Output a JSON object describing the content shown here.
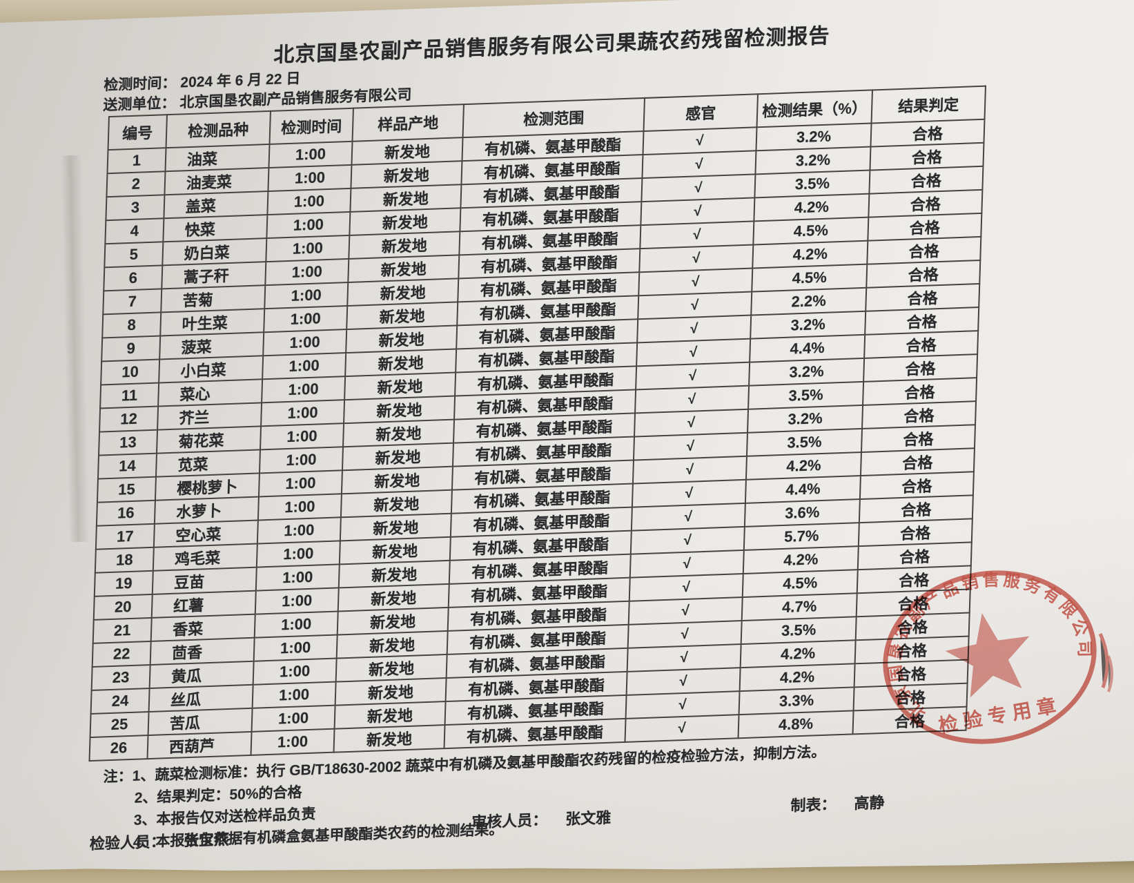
{
  "report": {
    "title": "北京国垦农副产品销售服务有限公司果蔬农药残留检测报告",
    "test_time_label": "检测时间：",
    "test_time_value": "2024 年 6 月 22 日",
    "submitter_label": "送测单位：",
    "submitter_value": "北京国垦农副产品销售服务有限公司",
    "table": {
      "headers": [
        "编号",
        "检测品种",
        "检测时间",
        "样品产地",
        "检测范围",
        "感官",
        "检测结果（%）",
        "结果判定"
      ],
      "rows": [
        [
          "1",
          "油菜",
          "1:00",
          "新发地",
          "有机磷、氨基甲酸酯",
          "√",
          "3.2%",
          "合格"
        ],
        [
          "2",
          "油麦菜",
          "1:00",
          "新发地",
          "有机磷、氨基甲酸酯",
          "√",
          "3.2%",
          "合格"
        ],
        [
          "3",
          "盖菜",
          "1:00",
          "新发地",
          "有机磷、氨基甲酸酯",
          "√",
          "3.5%",
          "合格"
        ],
        [
          "4",
          "快菜",
          "1:00",
          "新发地",
          "有机磷、氨基甲酸酯",
          "√",
          "4.2%",
          "合格"
        ],
        [
          "5",
          "奶白菜",
          "1:00",
          "新发地",
          "有机磷、氨基甲酸酯",
          "√",
          "4.5%",
          "合格"
        ],
        [
          "6",
          "蒿子秆",
          "1:00",
          "新发地",
          "有机磷、氨基甲酸酯",
          "√",
          "4.2%",
          "合格"
        ],
        [
          "7",
          "苦菊",
          "1:00",
          "新发地",
          "有机磷、氨基甲酸酯",
          "√",
          "4.5%",
          "合格"
        ],
        [
          "8",
          "叶生菜",
          "1:00",
          "新发地",
          "有机磷、氨基甲酸酯",
          "√",
          "2.2%",
          "合格"
        ],
        [
          "9",
          "菠菜",
          "1:00",
          "新发地",
          "有机磷、氨基甲酸酯",
          "√",
          "3.2%",
          "合格"
        ],
        [
          "10",
          "小白菜",
          "1:00",
          "新发地",
          "有机磷、氨基甲酸酯",
          "√",
          "4.4%",
          "合格"
        ],
        [
          "11",
          "菜心",
          "1:00",
          "新发地",
          "有机磷、氨基甲酸酯",
          "√",
          "3.2%",
          "合格"
        ],
        [
          "12",
          "芥兰",
          "1:00",
          "新发地",
          "有机磷、氨基甲酸酯",
          "√",
          "3.5%",
          "合格"
        ],
        [
          "13",
          "菊花菜",
          "1:00",
          "新发地",
          "有机磷、氨基甲酸酯",
          "√",
          "3.2%",
          "合格"
        ],
        [
          "14",
          "苋菜",
          "1:00",
          "新发地",
          "有机磷、氨基甲酸酯",
          "√",
          "3.5%",
          "合格"
        ],
        [
          "15",
          "樱桃萝卜",
          "1:00",
          "新发地",
          "有机磷、氨基甲酸酯",
          "√",
          "4.2%",
          "合格"
        ],
        [
          "16",
          "水萝卜",
          "1:00",
          "新发地",
          "有机磷、氨基甲酸酯",
          "√",
          "4.4%",
          "合格"
        ],
        [
          "17",
          "空心菜",
          "1:00",
          "新发地",
          "有机磷、氨基甲酸酯",
          "√",
          "3.6%",
          "合格"
        ],
        [
          "18",
          "鸡毛菜",
          "1:00",
          "新发地",
          "有机磷、氨基甲酸酯",
          "√",
          "5.7%",
          "合格"
        ],
        [
          "19",
          "豆苗",
          "1:00",
          "新发地",
          "有机磷、氨基甲酸酯",
          "√",
          "4.2%",
          "合格"
        ],
        [
          "20",
          "红薯",
          "1:00",
          "新发地",
          "有机磷、氨基甲酸酯",
          "√",
          "4.5%",
          "合格"
        ],
        [
          "21",
          "香菜",
          "1:00",
          "新发地",
          "有机磷、氨基甲酸酯",
          "√",
          "4.7%",
          "合格"
        ],
        [
          "22",
          "茴香",
          "1:00",
          "新发地",
          "有机磷、氨基甲酸酯",
          "√",
          "3.5%",
          "合格"
        ],
        [
          "23",
          "黄瓜",
          "1:00",
          "新发地",
          "有机磷、氨基甲酸酯",
          "√",
          "4.2%",
          "合格"
        ],
        [
          "24",
          "丝瓜",
          "1:00",
          "新发地",
          "有机磷、氨基甲酸酯",
          "√",
          "4.2%",
          "合格"
        ],
        [
          "25",
          "苦瓜",
          "1:00",
          "新发地",
          "有机磷、氨基甲酸酯",
          "√",
          "3.3%",
          "合格"
        ],
        [
          "26",
          "西葫芦",
          "1:00",
          "新发地",
          "有机磷、氨基甲酸酯",
          "√",
          "4.8%",
          "合格"
        ]
      ]
    },
    "notes": {
      "prefix": "注：",
      "items": [
        "1、蔬菜检测标准：执行 GB/T18630-2002 蔬菜中有机磷及氨基甲酸酯农药残留的检疫检验方法，抑制方法。",
        "2、结果判定：50%的合格",
        "3、本报告仅对送检样品负责",
        "4、本报告仅依据有机磷盒氨基甲酸酯类农药的检测结果。"
      ]
    },
    "signatures": {
      "inspector_label": "检验人员：",
      "inspector_name": "张宝燕",
      "reviewer_label": "审核人员：",
      "reviewer_name": "张文雅",
      "preparer_label": "制表：",
      "preparer_name": "高静"
    },
    "stamp": {
      "company": "北京国垦农副产品销售服务有限公司",
      "label": "检验专用章"
    },
    "colors": {
      "stamp_red": "#c83a2c",
      "paper": "#e6e4e0",
      "desk": "#b7a884",
      "ink": "#29282b"
    }
  }
}
